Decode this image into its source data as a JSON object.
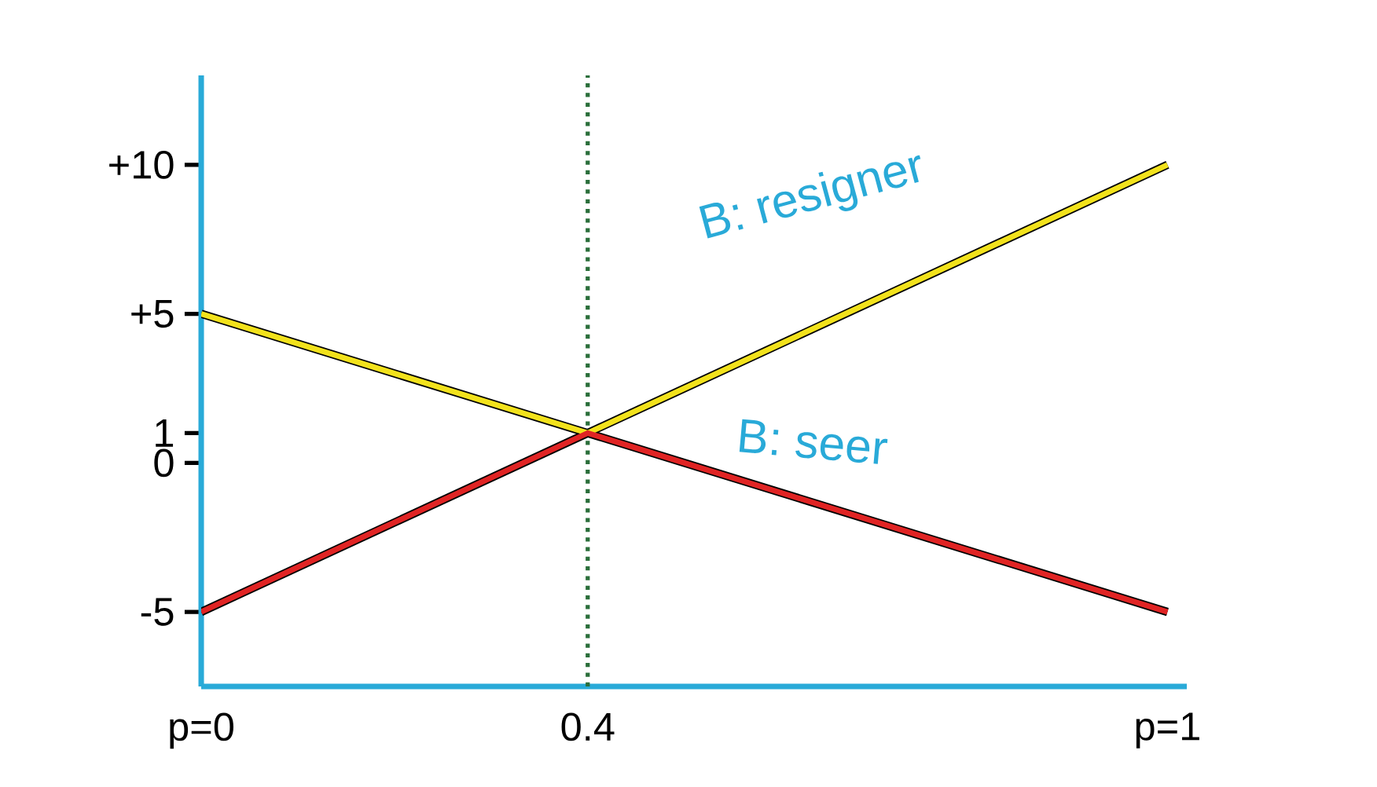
{
  "chart_data": {
    "type": "line",
    "series": [
      {
        "x": [
          0,
          1
        ],
        "values": [
          -5,
          10
        ],
        "color": "#000000"
      },
      {
        "x": [
          0,
          1
        ],
        "values": [
          5,
          -5
        ],
        "color": "#000000"
      },
      {
        "x": [
          0,
          0.4,
          1
        ],
        "values": [
          5,
          1,
          10
        ],
        "color": "#f2e21c"
      },
      {
        "x": [
          0,
          0.4,
          1
        ],
        "values": [
          -5,
          1,
          -5
        ],
        "color": "#e02424"
      }
    ],
    "xlim": [
      0,
      1.02
    ],
    "ylim": [
      -7.5,
      13
    ],
    "xticks": [
      {
        "value": 0,
        "label": "p=0"
      },
      {
        "value": 0.4,
        "label": "0.4"
      },
      {
        "value": 1,
        "label": "p=1"
      }
    ],
    "yticks": [
      {
        "value": -5,
        "label": "-5"
      },
      {
        "value": 0,
        "label": "0"
      },
      {
        "value": 1,
        "label": "1"
      },
      {
        "value": 5,
        "label": "+5"
      },
      {
        "value": 10,
        "label": "+10"
      }
    ],
    "ref_lines": [
      {
        "axis": "x",
        "value": 0.4,
        "color": "#2a6e3a",
        "line_style": "dotted"
      }
    ],
    "annotations": [
      "B: resigner",
      "B: seer"
    ],
    "grid": false,
    "marker": "none",
    "line_style": "solid"
  }
}
